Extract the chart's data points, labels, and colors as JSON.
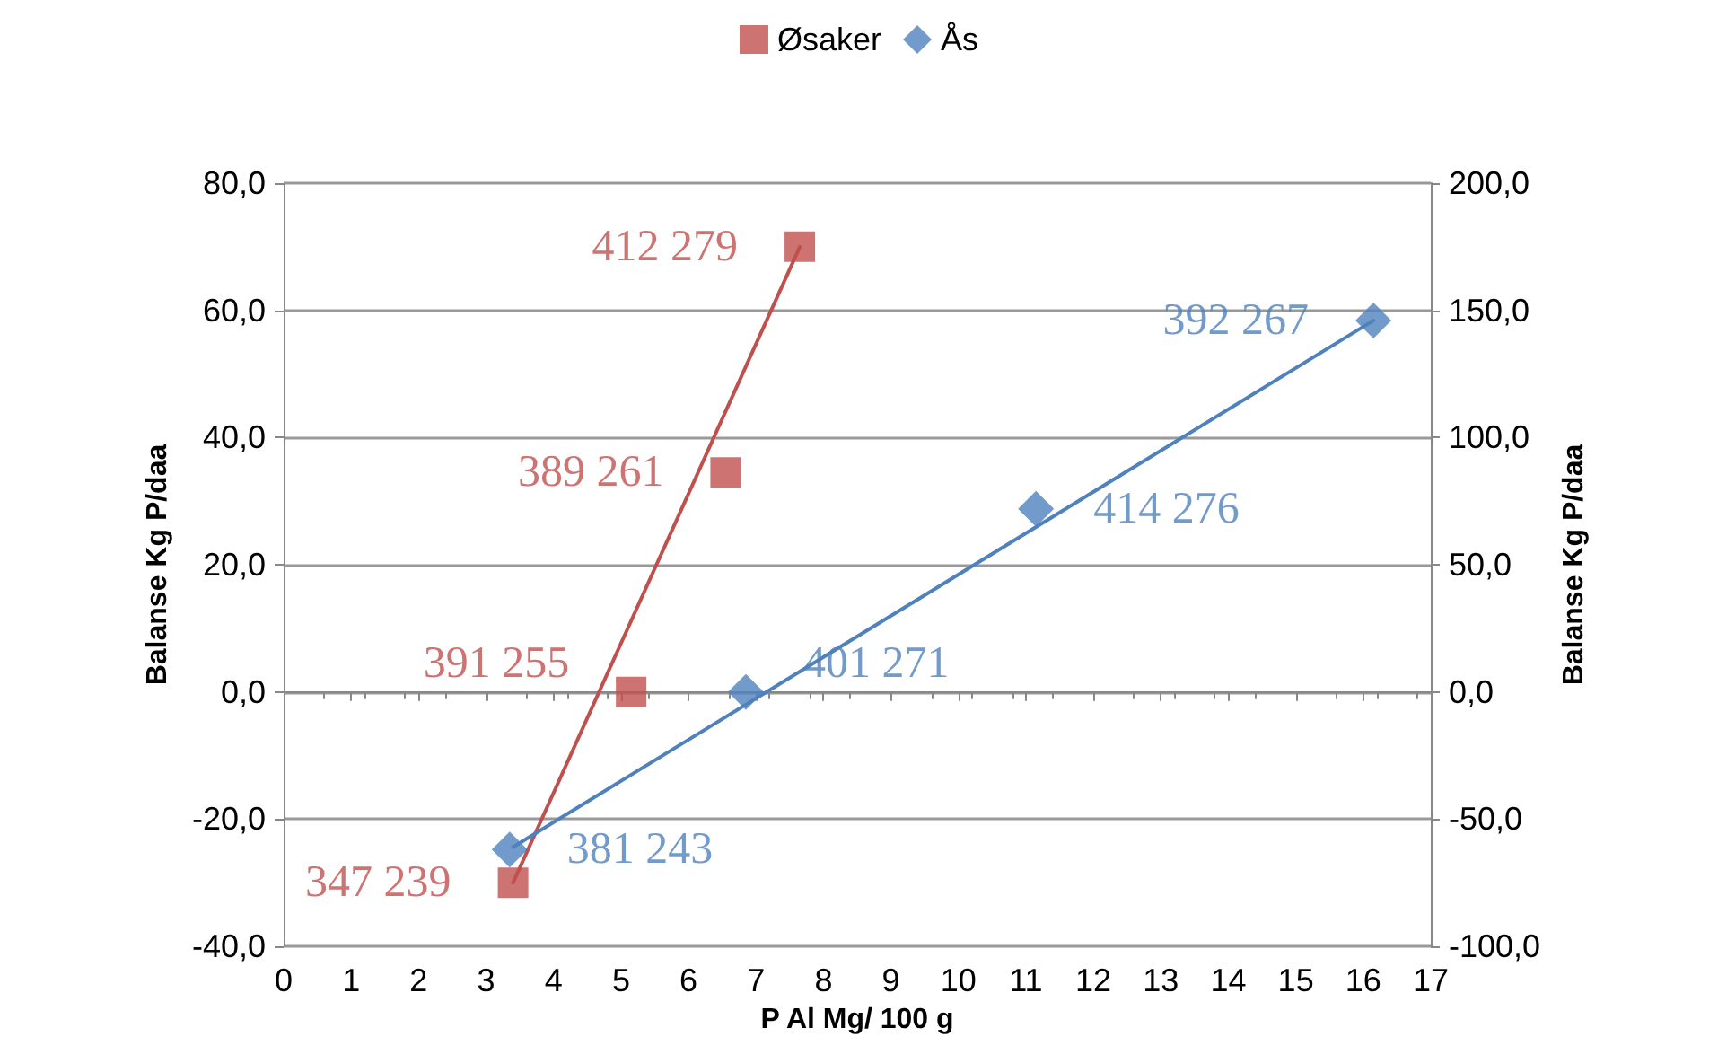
{
  "chart_data": {
    "type": "scatter",
    "xlabel": "P Al Mg/ 100 g",
    "ylabel": "Balanse Kg P/daa",
    "y2label": "Balanse Kg P/daa",
    "xlim": [
      0,
      17
    ],
    "xticks": [
      0,
      1,
      2,
      3,
      4,
      5,
      6,
      7,
      8,
      9,
      10,
      11,
      12,
      13,
      14,
      15,
      16,
      17
    ],
    "ylim": [
      -40,
      80
    ],
    "yticks": [
      {
        "value": -40,
        "label": "-40,0"
      },
      {
        "value": -20,
        "label": "-20,0"
      },
      {
        "value": 0,
        "label": "0,0"
      },
      {
        "value": 20,
        "label": "20,0"
      },
      {
        "value": 40,
        "label": "40,0"
      },
      {
        "value": 60,
        "label": "60,0"
      },
      {
        "value": 80,
        "label": "80,0"
      }
    ],
    "y2lim": [
      -100,
      200
    ],
    "y2ticks": [
      {
        "value": -100,
        "label": "-100,0"
      },
      {
        "value": -50,
        "label": "-50,0"
      },
      {
        "value": 0,
        "label": "0,0"
      },
      {
        "value": 50,
        "label": "50,0"
      },
      {
        "value": 100,
        "label": "100,0"
      },
      {
        "value": 150,
        "label": "150,0"
      },
      {
        "value": 200,
        "label": "200,0"
      }
    ],
    "grid": "y",
    "legend": "top",
    "annotations": [
      {
        "text": "347 239",
        "x": 3.4,
        "y": -30
      },
      {
        "text": "391 255",
        "x": 5.15,
        "y": 0
      },
      {
        "text": "389 261",
        "x": 6.55,
        "y": 34.5
      },
      {
        "text": "412 279",
        "x": 7.65,
        "y": 70
      },
      {
        "text": "381 243",
        "x": 3.35,
        "y": -24.8
      },
      {
        "text": "401 271",
        "x": 6.85,
        "y": 0
      },
      {
        "text": "414 276",
        "x": 11.15,
        "y": 28.8
      },
      {
        "text": "392 267",
        "x": 16.15,
        "y": 58.4
      }
    ],
    "series": [
      {
        "name": "Øsaker",
        "type": "scatter",
        "marker": "square",
        "color": "#c0504d",
        "x": [
          3.4,
          5.15,
          6.55,
          7.65
        ],
        "values": [
          -30,
          0,
          34.5,
          70
        ]
      },
      {
        "name": "Ås",
        "type": "scatter",
        "marker": "diamond",
        "color": "#4f81bd",
        "axis": "y2",
        "x": [
          3.35,
          6.85,
          11.15,
          16.15
        ],
        "values": [
          -62,
          0,
          72,
          146
        ]
      },
      {
        "type": "line",
        "marker": "none",
        "color": "#c0504d",
        "x": [
          3.4,
          7.65
        ],
        "values": [
          -30,
          70
        ]
      },
      {
        "type": "line",
        "marker": "none",
        "color": "#4f81bd",
        "axis": "y2",
        "x": [
          3.4,
          16.15
        ],
        "values": [
          -61,
          146
        ]
      }
    ]
  }
}
